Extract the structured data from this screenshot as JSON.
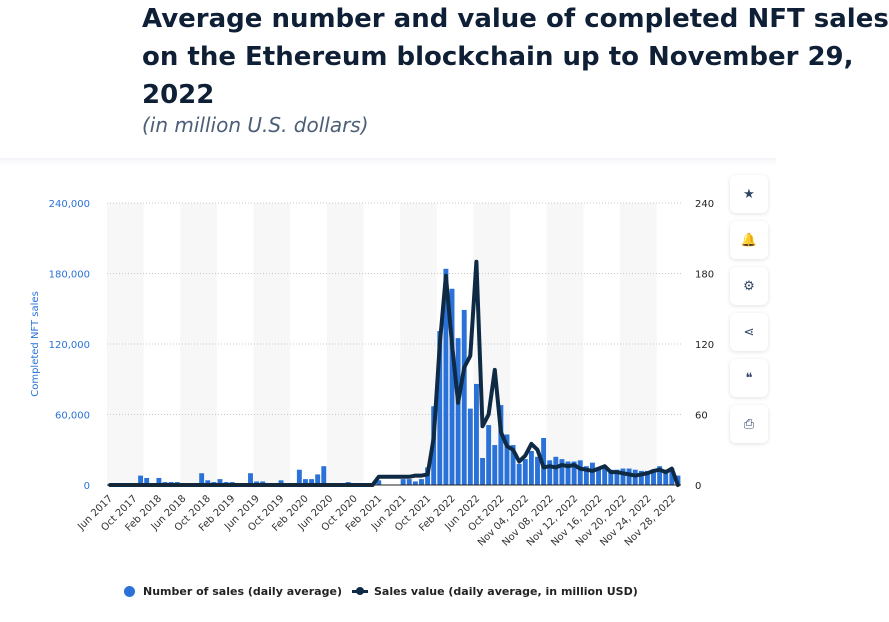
{
  "title_lines": [
    "Average number and value of completed NFT sales",
    "on the Ethereum blockchain up to November 29,",
    "2022"
  ],
  "subtitle": "(in million U.S. dollars)",
  "side_buttons": [
    {
      "name": "favorite-button",
      "icon": "star-icon",
      "glyph": "★"
    },
    {
      "name": "notification-button",
      "icon": "bell-icon",
      "glyph": "🔔"
    },
    {
      "name": "settings-button",
      "icon": "gear-icon",
      "glyph": "⚙"
    },
    {
      "name": "share-button",
      "icon": "share-icon",
      "glyph": "⋖"
    },
    {
      "name": "cite-button",
      "icon": "quote-icon",
      "glyph": "❝"
    },
    {
      "name": "print-button",
      "icon": "print-icon",
      "glyph": "⎙"
    }
  ],
  "legend": {
    "bars": "Number of sales (daily average)",
    "line": "Sales value (daily average, in million USD)"
  },
  "colors": {
    "bar": "#2a72d8",
    "line": "#0f2a44",
    "axis_left": "#2a72d8",
    "axis_right": "#222222"
  },
  "chart_data": {
    "type": "bar+line",
    "title": "Average number and value of completed NFT sales on the Ethereum blockchain up to November 29, 2022",
    "subtitle": "(in million U.S. dollars)",
    "ylabel": "Completed NFT sales",
    "ylabel_right": "",
    "ylim": [
      0,
      240000
    ],
    "ylim_right": [
      0,
      240
    ],
    "yticks": [
      "0",
      "60,000",
      "120,000",
      "180,000",
      "240,000"
    ],
    "yticks_right": [
      "0",
      "60",
      "120",
      "180",
      "240"
    ],
    "grid": true,
    "legend_position": "bottom",
    "xtick_labels": [
      "Jun 2017",
      "Oct 2017",
      "Feb 2018",
      "Jun 2018",
      "Oct 2018",
      "Feb 2019",
      "Jun 2019",
      "Oct 2019",
      "Feb 2020",
      "Jun 2020",
      "Oct 2020",
      "Feb 2021",
      "Jun 2021",
      "Oct 2021",
      "Feb 2022",
      "Jun 2022",
      "Oct 2022",
      "Nov 04, 2022",
      "Nov 08, 2022",
      "Nov 12, 2022",
      "Nov 16, 2022",
      "Nov 20, 2022",
      "Nov 24, 2022",
      "Nov 28, 2022"
    ],
    "series": [
      {
        "name": "Number of sales (daily average)",
        "type": "bar",
        "values": [
          0,
          0,
          0,
          0,
          0,
          8000,
          6000,
          1500,
          6000,
          2500,
          2500,
          2500,
          0,
          0,
          0,
          10000,
          4000,
          2500,
          5000,
          2500,
          2500,
          0,
          0,
          10000,
          3000,
          3000,
          0,
          1500,
          4000,
          0,
          0,
          13000,
          5000,
          5000,
          9000,
          16000,
          0,
          0,
          0,
          2500,
          0,
          0,
          0,
          0,
          4000,
          0,
          0,
          0,
          5000,
          5000,
          3000,
          5000,
          15000,
          67000,
          131000,
          184000,
          167000,
          125000,
          149000,
          65000,
          86000,
          23000,
          51000,
          34000,
          68000,
          43000,
          34000,
          18000,
          22000,
          29000,
          24000,
          40000,
          21000,
          24000,
          22000,
          20000,
          20000,
          21000,
          16000,
          19000,
          14000,
          15000,
          13000,
          13000,
          14000,
          14000,
          13000,
          12000,
          12000,
          13000,
          16000,
          13000,
          14000,
          8000
        ]
      },
      {
        "name": "Sales value (daily average, in million USD)",
        "type": "line",
        "values": [
          0,
          0,
          0,
          0,
          0,
          0,
          0,
          0,
          0,
          0,
          0,
          0,
          0,
          0,
          0,
          0,
          0,
          0,
          0,
          0,
          0,
          0,
          0,
          0,
          0,
          0,
          0,
          0,
          0,
          0,
          0,
          0,
          0,
          0,
          0,
          0,
          0,
          0,
          0,
          0,
          0,
          0,
          0,
          0,
          7,
          7,
          7,
          7,
          7,
          7,
          8,
          8,
          9,
          40,
          120,
          178,
          120,
          70,
          100,
          110,
          190,
          50,
          60,
          98,
          45,
          33,
          30,
          20,
          25,
          35,
          30,
          15,
          16,
          15,
          17,
          16,
          17,
          14,
          13,
          12,
          14,
          16,
          11,
          11,
          10,
          9,
          8,
          9,
          10,
          12,
          13,
          11,
          14,
          0
        ]
      }
    ]
  }
}
